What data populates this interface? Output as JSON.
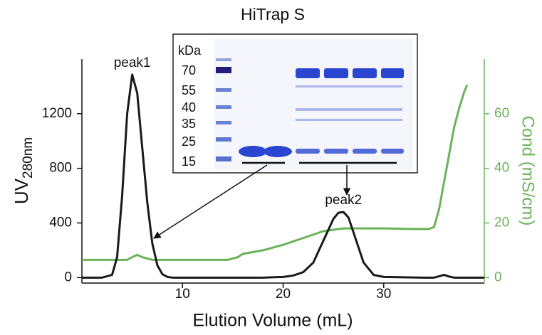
{
  "chart_data": {
    "type": "line",
    "title": "HiTrap S",
    "xlabel": "Elution Volume (mL)",
    "ylabel": "UV",
    "ylabel_subscript": "280nm",
    "y2label": "Cond (mS/cm)",
    "xlim": [
      0,
      40
    ],
    "xticks": [
      10,
      20,
      30
    ],
    "ylim": [
      -40,
      1600
    ],
    "yticks": [
      0,
      400,
      800,
      1200
    ],
    "y2lim": [
      -2,
      80
    ],
    "y2ticks": [
      0,
      20,
      40,
      60
    ],
    "y2color": "#6bb25a",
    "series": [
      {
        "color": "#1a1a1a",
        "x": [
          0,
          2,
          3,
          3.5,
          4,
          4.5,
          5,
          5.5,
          6,
          6.5,
          7,
          7.5,
          8,
          8.5,
          9,
          12,
          18,
          20,
          21,
          22,
          23,
          24,
          25,
          25.5,
          26,
          26.5,
          27,
          28,
          29,
          30,
          34,
          35,
          35.5,
          36,
          36.5,
          37,
          40
        ],
        "values": [
          0,
          0,
          20,
          150,
          600,
          1200,
          1486,
          1350,
          950,
          550,
          250,
          90,
          25,
          5,
          0,
          0,
          0,
          5,
          15,
          40,
          110,
          270,
          430,
          475,
          480,
          440,
          330,
          110,
          20,
          5,
          0,
          0,
          10,
          20,
          8,
          0,
          0
        ]
      },
      {
        "color": "#6bb25a",
        "axis": "y2",
        "x": [
          0,
          4.5,
          5,
          5.5,
          6,
          7,
          14.5,
          15.5,
          16,
          18,
          20,
          22,
          24,
          26,
          30,
          33,
          34.5,
          35,
          35.5,
          36,
          36.5,
          37,
          37.5,
          38,
          38.3
        ],
        "values": [
          6.5,
          6.5,
          7.5,
          8.3,
          7.5,
          6.5,
          6.5,
          7.5,
          8.7,
          10,
          12,
          14.5,
          17,
          18,
          18,
          17.8,
          17.8,
          18.5,
          25,
          35,
          45,
          55,
          62,
          68,
          70.5
        ]
      }
    ],
    "annotations": [
      {
        "text": "peak1",
        "x": 5,
        "y": 1486
      },
      {
        "text": "peak2",
        "x": 26,
        "y": 480
      }
    ],
    "inset": {
      "unit_label": "kDa",
      "marker_labels": [
        "70",
        "55",
        "40",
        "35",
        "25",
        "15"
      ]
    }
  }
}
